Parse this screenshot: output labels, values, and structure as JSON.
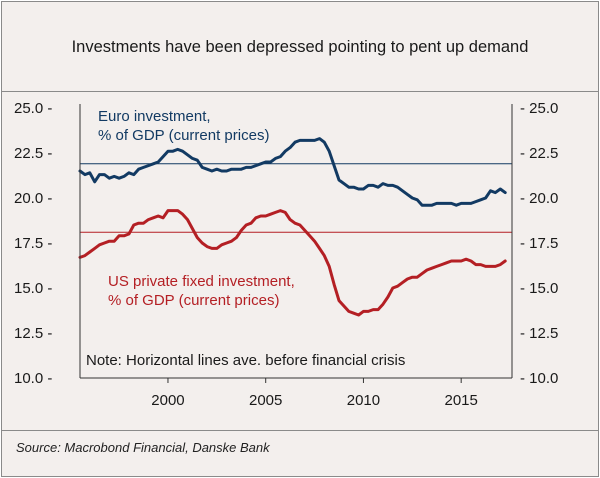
{
  "title": "Investments have been depressed pointing to pent up demand",
  "source": "Source: Macrobond Financial, Danske Bank",
  "colors": {
    "euro": "#123a63",
    "us": "#b41f24",
    "background": "#f3efed",
    "text": "#1a1a1a"
  },
  "chart_data": {
    "type": "line",
    "title": "Investments have been depressed pointing to pent up demand",
    "xlabel": "",
    "ylabel": "",
    "xlim": [
      1995.5,
      2017.6
    ],
    "ylim": [
      10.0,
      25.0
    ],
    "x_ticks": [
      2000,
      2005,
      2010,
      2015
    ],
    "x_tick_labels": [
      "2000",
      "2005",
      "2010",
      "2015"
    ],
    "y_ticks": [
      10.0,
      12.5,
      15.0,
      17.5,
      20.0,
      22.5,
      25.0
    ],
    "y_tick_labels_left": [
      "10.0 -",
      "12.5 -",
      "15.0 -",
      "17.5 -",
      "20.0 -",
      "22.5 -",
      "25.0 -"
    ],
    "y_tick_labels_right": [
      "- 10.0",
      "- 12.5",
      "- 15.0",
      "- 17.5",
      "- 20.0",
      "- 22.5",
      "- 25.0"
    ],
    "grid": false,
    "series": [
      {
        "name": "Euro investment, % of GDP (current prices)",
        "label_lines": [
          "Euro investment,",
          "% of GDP (current prices)"
        ],
        "color": "#123a63",
        "x": [
          1995.5,
          1995.75,
          1996.0,
          1996.25,
          1996.5,
          1996.75,
          1997.0,
          1997.25,
          1997.5,
          1997.75,
          1998.0,
          1998.25,
          1998.5,
          1998.75,
          1999.0,
          1999.25,
          1999.5,
          1999.75,
          2000.0,
          2000.25,
          2000.5,
          2000.75,
          2001.0,
          2001.25,
          2001.5,
          2001.75,
          2002.0,
          2002.25,
          2002.5,
          2002.75,
          2003.0,
          2003.25,
          2003.5,
          2003.75,
          2004.0,
          2004.25,
          2004.5,
          2004.75,
          2005.0,
          2005.25,
          2005.5,
          2005.75,
          2006.0,
          2006.25,
          2006.5,
          2006.75,
          2007.0,
          2007.25,
          2007.5,
          2007.75,
          2008.0,
          2008.25,
          2008.5,
          2008.75,
          2009.0,
          2009.25,
          2009.5,
          2009.75,
          2010.0,
          2010.25,
          2010.5,
          2010.75,
          2011.0,
          2011.25,
          2011.5,
          2011.75,
          2012.0,
          2012.25,
          2012.5,
          2012.75,
          2013.0,
          2013.25,
          2013.5,
          2013.75,
          2014.0,
          2014.25,
          2014.5,
          2014.75,
          2015.0,
          2015.25,
          2015.5,
          2015.75,
          2016.0,
          2016.25,
          2016.5,
          2016.75,
          2017.0,
          2017.25
        ],
        "values": [
          21.5,
          21.3,
          21.4,
          20.9,
          21.3,
          21.3,
          21.1,
          21.2,
          21.1,
          21.2,
          21.4,
          21.3,
          21.6,
          21.7,
          21.8,
          21.9,
          22.0,
          22.3,
          22.6,
          22.6,
          22.7,
          22.6,
          22.4,
          22.2,
          22.1,
          21.7,
          21.6,
          21.5,
          21.6,
          21.5,
          21.5,
          21.6,
          21.6,
          21.6,
          21.7,
          21.7,
          21.8,
          21.9,
          22.0,
          22.0,
          22.2,
          22.3,
          22.6,
          22.8,
          23.1,
          23.2,
          23.2,
          23.2,
          23.2,
          23.3,
          23.1,
          22.6,
          21.8,
          21.0,
          20.8,
          20.6,
          20.6,
          20.5,
          20.5,
          20.7,
          20.7,
          20.6,
          20.8,
          20.7,
          20.7,
          20.6,
          20.4,
          20.2,
          20.0,
          19.9,
          19.6,
          19.6,
          19.6,
          19.7,
          19.7,
          19.7,
          19.7,
          19.6,
          19.7,
          19.7,
          19.7,
          19.8,
          19.9,
          20.0,
          20.4,
          20.3,
          20.5,
          20.3
        ],
        "average_line": 21.9
      },
      {
        "name": "US private fixed investment, % of GDP (current prices)",
        "label_lines": [
          "US private fixed investment,",
          "% of GDP (current prices)"
        ],
        "color": "#b41f24",
        "x": [
          1995.5,
          1995.75,
          1996.0,
          1996.25,
          1996.5,
          1996.75,
          1997.0,
          1997.25,
          1997.5,
          1997.75,
          1998.0,
          1998.25,
          1998.5,
          1998.75,
          1999.0,
          1999.25,
          1999.5,
          1999.75,
          2000.0,
          2000.25,
          2000.5,
          2000.75,
          2001.0,
          2001.25,
          2001.5,
          2001.75,
          2002.0,
          2002.25,
          2002.5,
          2002.75,
          2003.0,
          2003.25,
          2003.5,
          2003.75,
          2004.0,
          2004.25,
          2004.5,
          2004.75,
          2005.0,
          2005.25,
          2005.5,
          2005.75,
          2006.0,
          2006.25,
          2006.5,
          2006.75,
          2007.0,
          2007.25,
          2007.5,
          2007.75,
          2008.0,
          2008.25,
          2008.5,
          2008.75,
          2009.0,
          2009.25,
          2009.5,
          2009.75,
          2010.0,
          2010.25,
          2010.5,
          2010.75,
          2011.0,
          2011.25,
          2011.5,
          2011.75,
          2012.0,
          2012.25,
          2012.5,
          2012.75,
          2013.0,
          2013.25,
          2013.5,
          2013.75,
          2014.0,
          2014.25,
          2014.5,
          2014.75,
          2015.0,
          2015.25,
          2015.5,
          2015.75,
          2016.0,
          2016.25,
          2016.5,
          2016.75,
          2017.0,
          2017.25
        ],
        "values": [
          16.7,
          16.8,
          17.0,
          17.2,
          17.4,
          17.5,
          17.6,
          17.6,
          17.9,
          17.9,
          18.0,
          18.5,
          18.6,
          18.6,
          18.8,
          18.9,
          19.0,
          18.9,
          19.3,
          19.3,
          19.3,
          19.1,
          18.8,
          18.3,
          17.8,
          17.5,
          17.3,
          17.2,
          17.2,
          17.4,
          17.5,
          17.6,
          17.8,
          18.2,
          18.5,
          18.6,
          18.9,
          19.0,
          19.0,
          19.1,
          19.2,
          19.3,
          19.2,
          18.8,
          18.6,
          18.5,
          18.2,
          17.9,
          17.6,
          17.2,
          16.8,
          16.2,
          15.2,
          14.3,
          14.0,
          13.7,
          13.6,
          13.5,
          13.7,
          13.7,
          13.8,
          13.8,
          14.1,
          14.5,
          15.0,
          15.1,
          15.3,
          15.5,
          15.6,
          15.6,
          15.8,
          16.0,
          16.1,
          16.2,
          16.3,
          16.4,
          16.5,
          16.5,
          16.5,
          16.6,
          16.5,
          16.3,
          16.3,
          16.2,
          16.2,
          16.2,
          16.3,
          16.5
        ],
        "average_line": 18.1
      }
    ],
    "annotations": [
      "Note: Horizontal lines ave. before financial crisis"
    ]
  }
}
